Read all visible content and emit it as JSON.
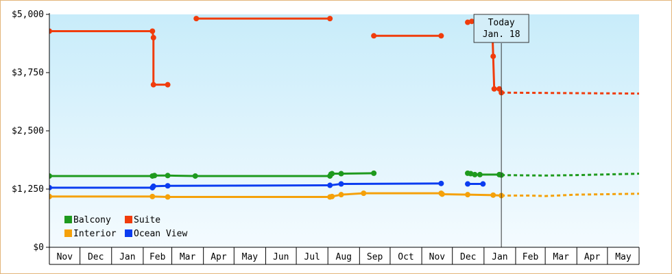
{
  "chart_data": {
    "type": "line",
    "title": "",
    "xlabel": "",
    "ylabel": "",
    "ylim": [
      0,
      5000
    ],
    "y_ticks": [
      0,
      1250,
      2500,
      3750,
      5000
    ],
    "y_tick_labels": [
      "$0",
      "$1,250",
      "$2,500",
      "$3,750",
      "$5,000"
    ],
    "x_range": [
      "2018-11-01",
      "2020-06-01"
    ],
    "x_ticks": [
      {
        "label": "Nov",
        "date": "2018-11-01"
      },
      {
        "label": "Dec",
        "date": "2018-12-01"
      },
      {
        "label": "Jan",
        "date": "2019-01-01"
      },
      {
        "label": "Feb",
        "date": "2019-02-01"
      },
      {
        "label": "Mar",
        "date": "2019-03-01"
      },
      {
        "label": "Apr",
        "date": "2019-04-01"
      },
      {
        "label": "May",
        "date": "2019-05-01"
      },
      {
        "label": "Jun",
        "date": "2019-06-01"
      },
      {
        "label": "Jul",
        "date": "2019-07-01"
      },
      {
        "label": "Aug",
        "date": "2019-08-01"
      },
      {
        "label": "Sep",
        "date": "2019-09-01"
      },
      {
        "label": "Oct",
        "date": "2019-10-01"
      },
      {
        "label": "Nov",
        "date": "2019-11-01"
      },
      {
        "label": "Dec",
        "date": "2019-12-01"
      },
      {
        "label": "Jan",
        "date": "2020-01-01"
      },
      {
        "label": "Feb",
        "date": "2020-02-01"
      },
      {
        "label": "Mar",
        "date": "2020-03-01"
      },
      {
        "label": "Apr",
        "date": "2020-04-01"
      },
      {
        "label": "May",
        "date": "2020-05-01"
      }
    ],
    "today": {
      "date": "2020-01-18",
      "line1": "Today",
      "line2": "Jan. 18"
    },
    "grid": false,
    "legend_position": "bottom-left",
    "series": [
      {
        "name": "Balcony",
        "color": "#1e9a1e",
        "segments": [
          [
            [
              "2018-11-01",
              1530
            ],
            [
              "2019-02-10",
              1530
            ],
            [
              "2019-02-12",
              1540
            ],
            [
              "2019-02-25",
              1540
            ],
            [
              "2019-03-24",
              1530
            ],
            [
              "2019-08-03",
              1530
            ],
            [
              "2019-08-04",
              1570
            ],
            [
              "2019-08-05",
              1580
            ],
            [
              "2019-08-14",
              1580
            ],
            [
              "2019-09-15",
              1590
            ]
          ],
          [
            [
              "2019-12-16",
              1590
            ],
            [
              "2019-12-19",
              1580
            ],
            [
              "2019-12-23",
              1560
            ],
            [
              "2019-12-28",
              1560
            ],
            [
              "2020-01-16",
              1560
            ],
            [
              "2020-01-18",
              1550
            ]
          ]
        ],
        "forecast": [
          [
            "2020-01-18",
            1550
          ],
          [
            "2020-03-01",
            1540
          ],
          [
            "2020-04-01",
            1550
          ],
          [
            "2020-06-01",
            1580
          ]
        ]
      },
      {
        "name": "Suite",
        "color": "#f03c0c",
        "segments": [
          [
            [
              "2018-11-01",
              4640
            ],
            [
              "2019-02-10",
              4640
            ],
            [
              "2019-02-11",
              4500
            ],
            [
              "2019-02-11",
              3490
            ],
            [
              "2019-02-25",
              3490
            ]
          ],
          [
            [
              "2019-03-25",
              4910
            ],
            [
              "2019-08-03",
              4910
            ]
          ],
          [
            [
              "2019-09-15",
              4540
            ],
            [
              "2019-11-20",
              4540
            ]
          ],
          [
            [
              "2019-12-16",
              4830
            ],
            [
              "2019-12-20",
              4850
            ],
            [
              "2019-12-24",
              4850
            ],
            [
              "2019-12-28",
              4820
            ],
            [
              "2020-01-01",
              4810
            ],
            [
              "2020-01-09",
              4800
            ],
            [
              "2020-01-10",
              4100
            ],
            [
              "2020-01-11",
              3400
            ],
            [
              "2020-01-16",
              3400
            ],
            [
              "2020-01-18",
              3320
            ]
          ]
        ],
        "forecast": [
          [
            "2020-01-18",
            3320
          ],
          [
            "2020-06-01",
            3300
          ]
        ]
      },
      {
        "name": "Interior",
        "color": "#f5a10a",
        "segments": [
          [
            [
              "2018-11-01",
              1090
            ],
            [
              "2019-02-10",
              1090
            ],
            [
              "2019-02-25",
              1080
            ],
            [
              "2019-08-03",
              1080
            ],
            [
              "2019-08-05",
              1090
            ],
            [
              "2019-08-14",
              1130
            ],
            [
              "2019-09-05",
              1160
            ],
            [
              "2019-11-20",
              1160
            ],
            [
              "2019-11-21",
              1140
            ],
            [
              "2019-12-16",
              1130
            ],
            [
              "2020-01-10",
              1120
            ],
            [
              "2020-01-18",
              1110
            ]
          ]
        ],
        "forecast": [
          [
            "2020-01-18",
            1110
          ],
          [
            "2020-02-15",
            1110
          ],
          [
            "2020-03-01",
            1100
          ],
          [
            "2020-04-01",
            1130
          ],
          [
            "2020-06-01",
            1150
          ]
        ]
      },
      {
        "name": "Ocean View",
        "color": "#0a3cf0",
        "segments": [
          [
            [
              "2018-11-01",
              1280
            ],
            [
              "2019-02-10",
              1280
            ],
            [
              "2019-02-11",
              1310
            ],
            [
              "2019-02-25",
              1320
            ],
            [
              "2019-08-03",
              1330
            ],
            [
              "2019-08-14",
              1360
            ],
            [
              "2019-11-20",
              1370
            ]
          ],
          [
            [
              "2019-12-16",
              1360
            ],
            [
              "2019-12-31",
              1360
            ]
          ]
        ],
        "forecast": []
      }
    ],
    "legend": [
      {
        "name": "Balcony",
        "color": "#1e9a1e"
      },
      {
        "name": "Suite",
        "color": "#f03c0c"
      },
      {
        "name": "Interior",
        "color": "#f5a10a"
      },
      {
        "name": "Ocean View",
        "color": "#0a3cf0"
      }
    ]
  }
}
